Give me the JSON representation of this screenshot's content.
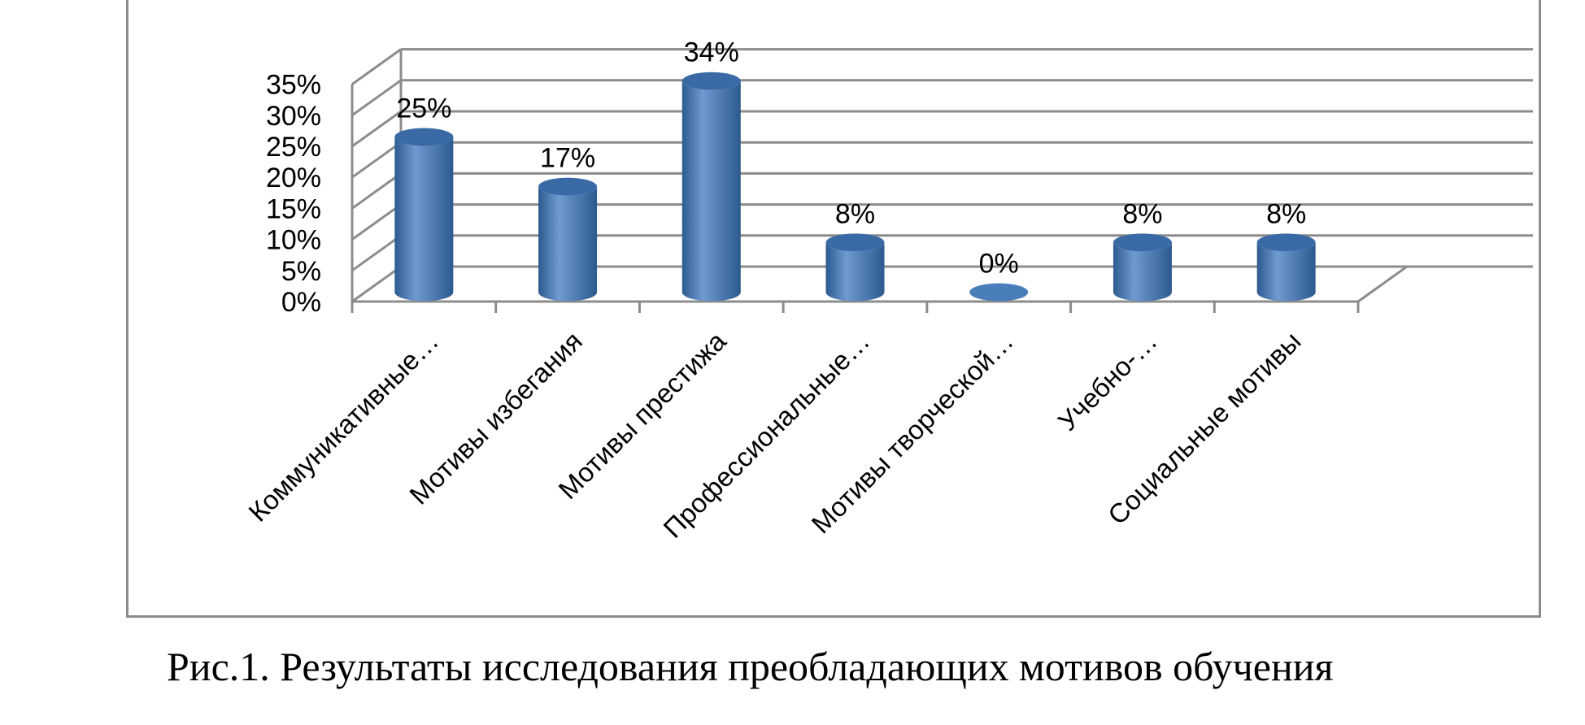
{
  "caption": "Рис.1. Результаты исследования преобладающих мотивов обучения",
  "colors": {
    "bar_front": "#4a7ebb",
    "bar_light": "#6f9ad2",
    "bar_dark": "#2c5a8f",
    "bar_top": "#3a6aa5",
    "grid": "#8c8c8c",
    "text": "#000000"
  },
  "chart_data": {
    "type": "bar",
    "style": "3d-cylinder",
    "categories": [
      "Коммуникативные…",
      "Мотивы избегания",
      "Мотивы престижа",
      "Профессиональные…",
      "Мотивы творческой…",
      "Учебно-…",
      "Социальные мотивы"
    ],
    "values": [
      25,
      17,
      34,
      8,
      0,
      8,
      8
    ],
    "data_labels": [
      "25%",
      "17%",
      "34%",
      "8%",
      "0%",
      "8%",
      "8%"
    ],
    "y_ticks": [
      "0%",
      "5%",
      "10%",
      "15%",
      "20%",
      "25%",
      "30%",
      "35%"
    ],
    "ylim": [
      0,
      35
    ],
    "grid": true,
    "legend": "none"
  }
}
